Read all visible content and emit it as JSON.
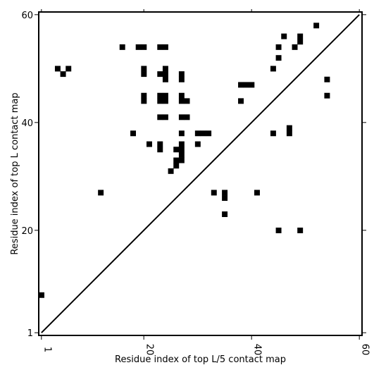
{
  "chart_data": {
    "type": "heatmap",
    "xlabel": "Residue index of top L/5 contact map",
    "ylabel": "Residue index of top L contact map",
    "xlim": [
      0.5,
      60.5
    ],
    "ylim": [
      0.5,
      60.5
    ],
    "x_ticks": [
      {
        "value": 1,
        "label": "1"
      },
      {
        "value": 20,
        "label": "20"
      },
      {
        "value": 40,
        "label": "40"
      },
      {
        "value": 60,
        "label": "60"
      }
    ],
    "y_ticks": [
      {
        "value": 1,
        "label": "1"
      },
      {
        "value": 20,
        "label": "20"
      },
      {
        "value": 40,
        "label": "40"
      },
      {
        "value": 60,
        "label": "60"
      }
    ],
    "diagonal": true,
    "grid": false,
    "cell_color": "#000000",
    "contacts_upper": [
      [
        52,
        58
      ],
      [
        46,
        56
      ],
      [
        49,
        56
      ],
      [
        49,
        55
      ],
      [
        16,
        54
      ],
      [
        19,
        54
      ],
      [
        20,
        54
      ],
      [
        23,
        54
      ],
      [
        24,
        54
      ],
      [
        45,
        54
      ],
      [
        48,
        54
      ],
      [
        45,
        52
      ],
      [
        4,
        50
      ],
      [
        6,
        50
      ],
      [
        20,
        50
      ],
      [
        24,
        50
      ],
      [
        44,
        50
      ],
      [
        5,
        49
      ],
      [
        20,
        49
      ],
      [
        23,
        49
      ],
      [
        24,
        49
      ],
      [
        27,
        49
      ],
      [
        24,
        48
      ],
      [
        27,
        48
      ],
      [
        54,
        48
      ],
      [
        38,
        47
      ],
      [
        39,
        47
      ],
      [
        40,
        47
      ],
      [
        20,
        45
      ],
      [
        23,
        45
      ],
      [
        24,
        45
      ],
      [
        27,
        45
      ],
      [
        54,
        45
      ],
      [
        20,
        44
      ],
      [
        23,
        44
      ],
      [
        24,
        44
      ],
      [
        27,
        44
      ],
      [
        28,
        44
      ],
      [
        38,
        44
      ],
      [
        23,
        41
      ],
      [
        24,
        41
      ],
      [
        27,
        41
      ],
      [
        28,
        41
      ],
      [
        47,
        39
      ],
      [
        18,
        38
      ],
      [
        27,
        38
      ],
      [
        30,
        38
      ],
      [
        31,
        38
      ],
      [
        32,
        38
      ],
      [
        44,
        38
      ],
      [
        47,
        38
      ],
      [
        21,
        36
      ],
      [
        23,
        36
      ],
      [
        27,
        36
      ],
      [
        30,
        36
      ],
      [
        23,
        35
      ],
      [
        26,
        35
      ],
      [
        27,
        35
      ],
      [
        27,
        34
      ],
      [
        26,
        33
      ],
      [
        27,
        33
      ],
      [
        26,
        32
      ],
      [
        25,
        31
      ],
      [
        12,
        27
      ],
      [
        33,
        27
      ],
      [
        35,
        27
      ],
      [
        41,
        27
      ],
      [
        35,
        26
      ],
      [
        35,
        23
      ]
    ],
    "contacts_lower": [
      [
        45,
        20
      ],
      [
        49,
        20
      ],
      [
        1,
        8
      ]
    ]
  }
}
